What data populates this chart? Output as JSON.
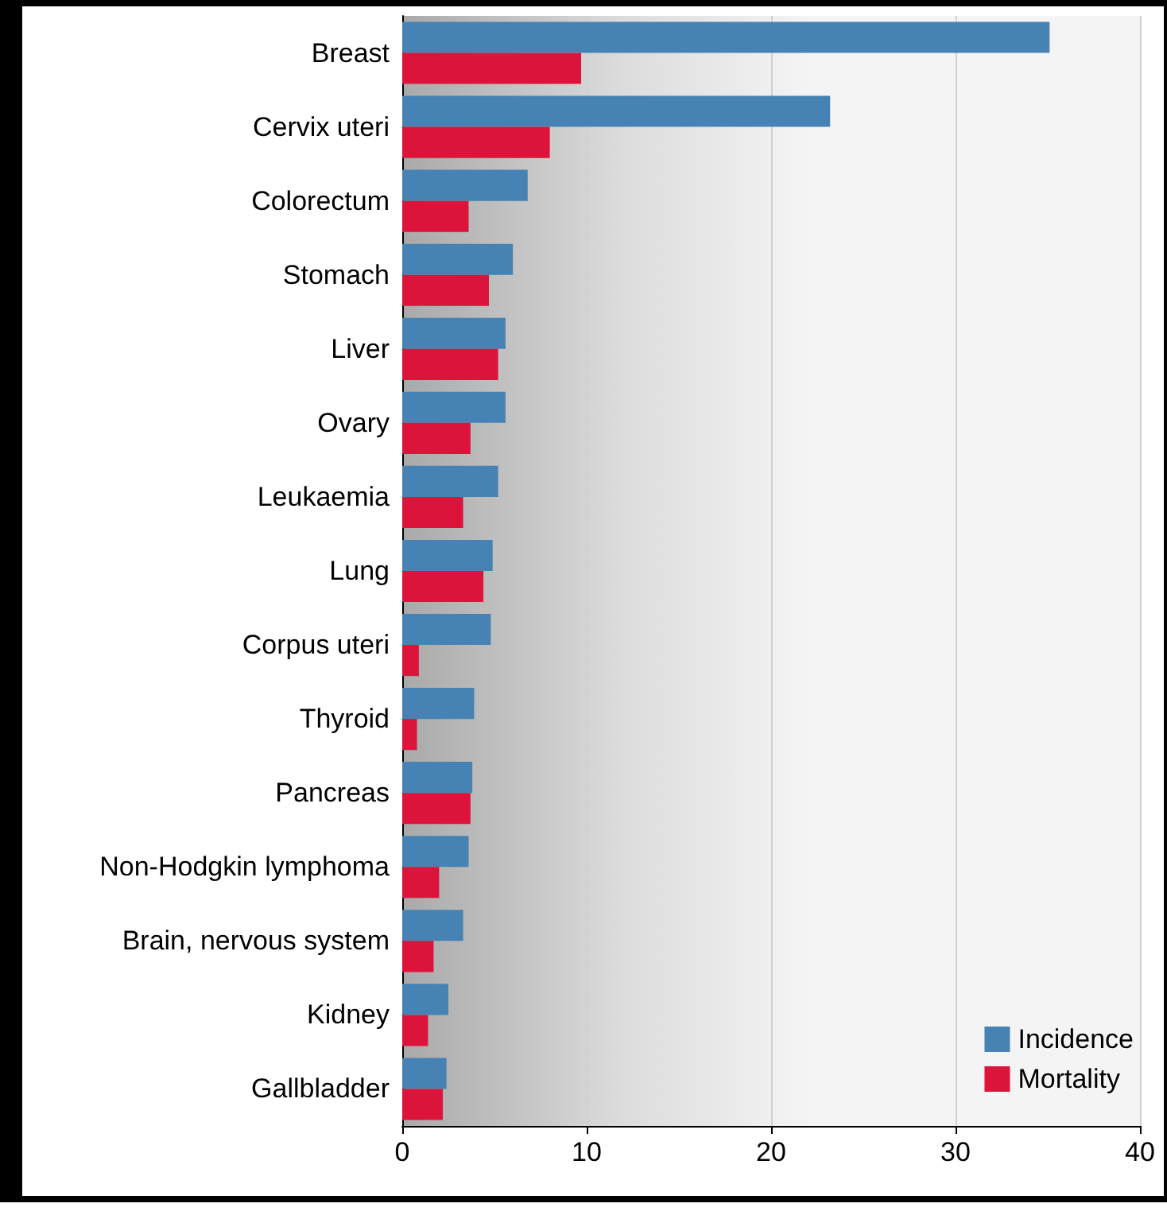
{
  "chart_data": {
    "type": "bar",
    "orientation": "horizontal",
    "categories": [
      "Breast",
      "Cervix uteri",
      "Colorectum",
      "Stomach",
      "Liver",
      "Ovary",
      "Leukaemia",
      "Lung",
      "Corpus uteri",
      "Thyroid",
      "Pancreas",
      "Non-Hodgkin lymphoma",
      "Brain, nervous system",
      "Kidney",
      "Gallbladder"
    ],
    "series": [
      {
        "name": "Incidence",
        "color": "#4682b4",
        "values": [
          35.1,
          23.2,
          6.8,
          6.0,
          5.6,
          5.6,
          5.2,
          4.9,
          4.8,
          3.9,
          3.8,
          3.6,
          3.3,
          2.5,
          2.4
        ]
      },
      {
        "name": "Mortality",
        "color": "#dc143c",
        "values": [
          9.7,
          8.0,
          3.6,
          4.7,
          5.2,
          3.7,
          3.3,
          4.4,
          0.9,
          0.8,
          3.7,
          2.0,
          1.7,
          1.4,
          2.2
        ]
      }
    ],
    "xlim": [
      0,
      40
    ],
    "xticks": [
      0,
      10,
      20,
      30,
      40
    ],
    "grid": "x",
    "legend": "bottom right"
  }
}
